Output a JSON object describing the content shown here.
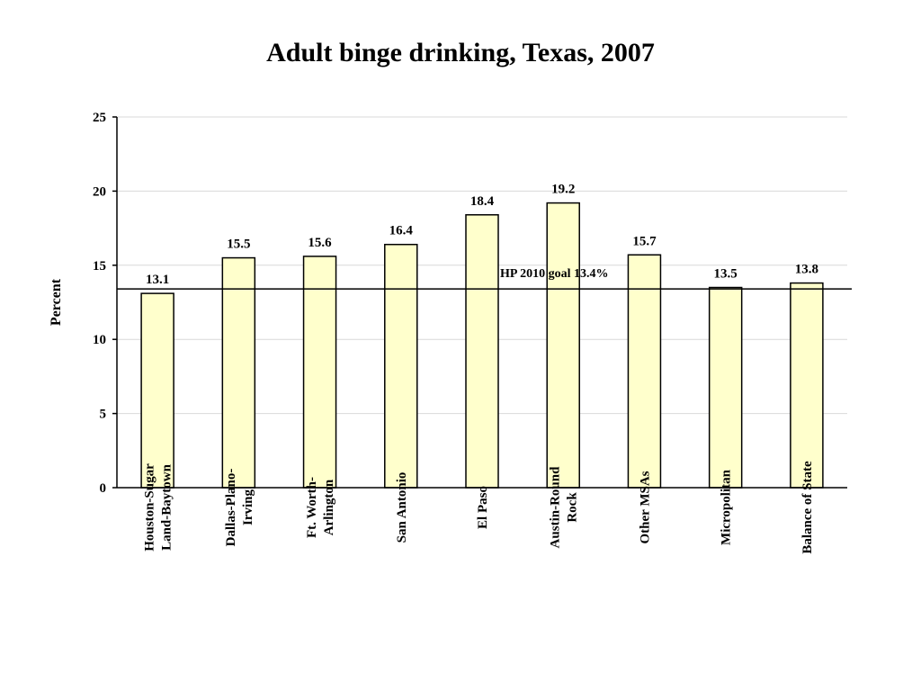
{
  "chart_data": {
    "type": "bar",
    "title": "Adult binge drinking, Texas, 2007",
    "xlabel": "",
    "ylabel": "Percent",
    "ylim": [
      0,
      25
    ],
    "yticks": [
      0,
      5,
      10,
      15,
      20,
      25
    ],
    "grid": true,
    "categories": [
      [
        "Houston-Sugar",
        "Land-Baytown"
      ],
      [
        "Dallas-Plano-",
        "Irving"
      ],
      [
        "Ft. Worth-",
        "Arlington"
      ],
      [
        "San Antonio"
      ],
      [
        "El Paso"
      ],
      [
        "Austin-Round",
        "Rock"
      ],
      [
        "Other MSAs"
      ],
      [
        "Micropolitan"
      ],
      [
        "Balance of State"
      ]
    ],
    "values": [
      13.1,
      15.5,
      15.6,
      16.4,
      18.4,
      19.2,
      15.7,
      13.5,
      13.8
    ],
    "data_labels": [
      "13.1",
      "15.5",
      "15.6",
      "16.4",
      "18.4",
      "19.2",
      "15.7",
      "13.5",
      "13.8"
    ],
    "reference_line": {
      "value": 13.4,
      "label": "HP 2010 goal 13.4%"
    },
    "colors": {
      "bar_fill": "#FFFFCC",
      "bar_stroke": "#000000",
      "grid": "#D9D9D9",
      "axis": "#000000"
    }
  }
}
